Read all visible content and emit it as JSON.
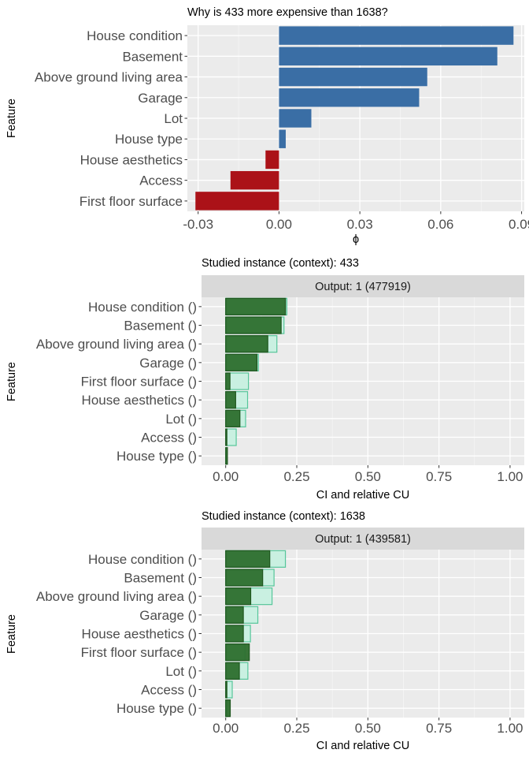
{
  "chart_data": [
    {
      "type": "bar",
      "orientation": "horizontal",
      "title": "Why is 433 more expensive than 1638?",
      "xlabel": "ϕ",
      "ylabel": "Feature",
      "xlim": [
        -0.034,
        0.091
      ],
      "x_ticks": [
        -0.03,
        0.0,
        0.03,
        0.06,
        0.09
      ],
      "x_tick_labels": [
        "-0.03",
        "0.00",
        "0.03",
        "0.06",
        "0.09"
      ],
      "grid": true,
      "categories": [
        "House condition",
        "Basement",
        "Above ground living area",
        "Garage",
        "Lot",
        "House type",
        "House aesthetics",
        "Access",
        "First floor surface"
      ],
      "values": [
        0.087,
        0.081,
        0.055,
        0.052,
        0.012,
        0.0025,
        -0.005,
        -0.018,
        -0.031
      ],
      "colors": {
        "positive": "#3a6ea5",
        "negative": "#ab1218"
      }
    },
    {
      "type": "bar",
      "orientation": "horizontal",
      "title": "Studied instance (context): 433",
      "strip_label": "Output: 1 (477919)",
      "xlabel": "CI and relative CU",
      "ylabel": "Feature",
      "xlim": [
        -0.085,
        1.05
      ],
      "x_ticks": [
        0.0,
        0.25,
        0.5,
        0.75,
        1.0
      ],
      "x_tick_labels": [
        "0.00",
        "0.25",
        "0.50",
        "0.75",
        "1.00"
      ],
      "grid": true,
      "categories": [
        "House condition ()",
        "Basement ()",
        "Above ground living area ()",
        "Garage ()",
        "First floor surface ()",
        "House aesthetics ()",
        "Lot ()",
        "Access ()",
        "House type ()"
      ],
      "series": [
        {
          "name": "CI",
          "values": [
            0.215,
            0.205,
            0.18,
            0.115,
            0.08,
            0.077,
            0.07,
            0.037,
            0.003
          ]
        },
        {
          "name": "relative CU",
          "values": [
            0.21,
            0.195,
            0.148,
            0.11,
            0.015,
            0.035,
            0.05,
            0.003,
            0.006
          ]
        }
      ],
      "colors": {
        "ci_fill": "#c9f0e1",
        "ci_stroke": "#56c69a",
        "cu_fill": "#2d6e2d",
        "cu_stroke": "#1f571f"
      }
    },
    {
      "type": "bar",
      "orientation": "horizontal",
      "title": "Studied instance (context): 1638",
      "strip_label": "Output: 1 (439581)",
      "xlabel": "CI and relative CU",
      "ylabel": "Feature",
      "xlim": [
        -0.085,
        1.05
      ],
      "x_ticks": [
        0.0,
        0.25,
        0.5,
        0.75,
        1.0
      ],
      "x_tick_labels": [
        "0.00",
        "0.25",
        "0.50",
        "0.75",
        "1.00"
      ],
      "grid": true,
      "categories": [
        "House condition ()",
        "Basement ()",
        "Above ground living area ()",
        "Garage ()",
        "House aesthetics ()",
        "First floor surface ()",
        "Lot ()",
        "Access ()",
        "House type ()"
      ],
      "series": [
        {
          "name": "CI",
          "values": [
            0.21,
            0.17,
            0.163,
            0.113,
            0.087,
            0.068,
            0.078,
            0.023,
            0.004
          ]
        },
        {
          "name": "relative CU",
          "values": [
            0.155,
            0.13,
            0.088,
            0.062,
            0.062,
            0.083,
            0.048,
            0.004,
            0.016
          ]
        }
      ],
      "colors": {
        "ci_fill": "#c9f0e1",
        "ci_stroke": "#56c69a",
        "cu_fill": "#2d6e2d",
        "cu_stroke": "#1f571f"
      }
    }
  ]
}
